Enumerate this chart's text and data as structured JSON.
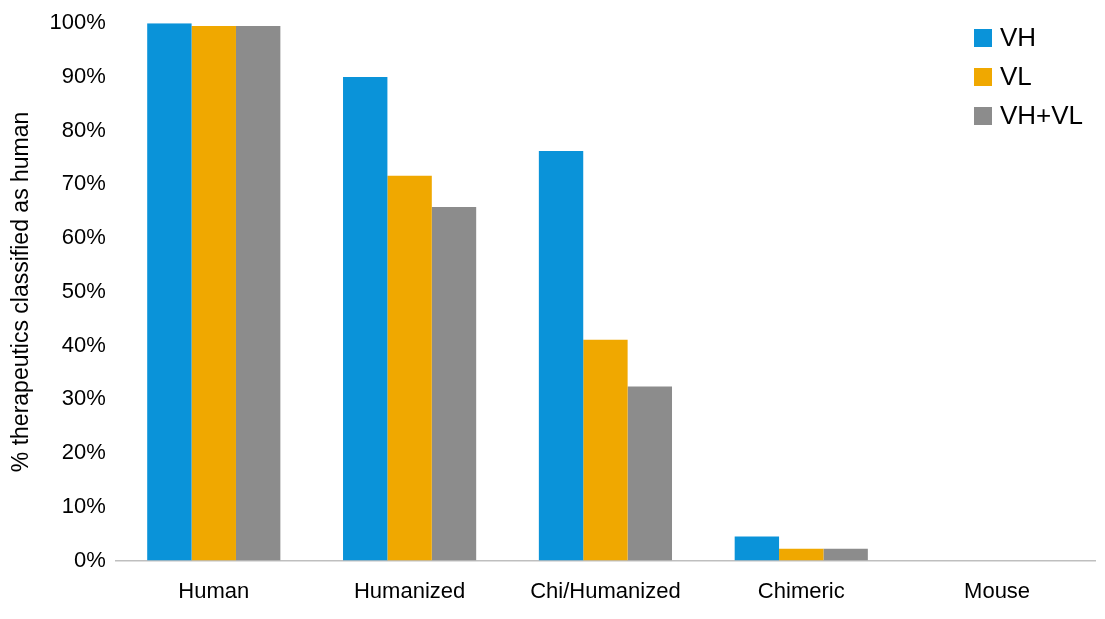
{
  "chart_data": {
    "type": "bar",
    "ylabel": "% therapeutics classified as human",
    "categories": [
      "Human",
      "Humanized",
      "Chi/Humanized",
      "Chimeric",
      "Mouse"
    ],
    "series": [
      {
        "name": "VH",
        "color": "#0a93d9",
        "values": [
          100,
          90,
          76.2,
          4.5,
          0
        ]
      },
      {
        "name": "VL",
        "color": "#f0a800",
        "values": [
          99.5,
          71.6,
          41.1,
          2.2,
          0
        ]
      },
      {
        "name": "VH+VL",
        "color": "#8c8c8c",
        "values": [
          99.5,
          65.8,
          32.4,
          2.2,
          0
        ]
      }
    ],
    "ylim": [
      0,
      100
    ],
    "yticks": [
      {
        "value": 0,
        "label": "0%"
      },
      {
        "value": 10,
        "label": "10%"
      },
      {
        "value": 20,
        "label": "20%"
      },
      {
        "value": 30,
        "label": "30%"
      },
      {
        "value": 40,
        "label": "40%"
      },
      {
        "value": 50,
        "label": "50%"
      },
      {
        "value": 60,
        "label": "60%"
      },
      {
        "value": 70,
        "label": "70%"
      },
      {
        "value": 80,
        "label": "80%"
      },
      {
        "value": 90,
        "label": "90%"
      },
      {
        "value": 100,
        "label": "100%"
      }
    ],
    "grid": false,
    "legend": "top right"
  }
}
